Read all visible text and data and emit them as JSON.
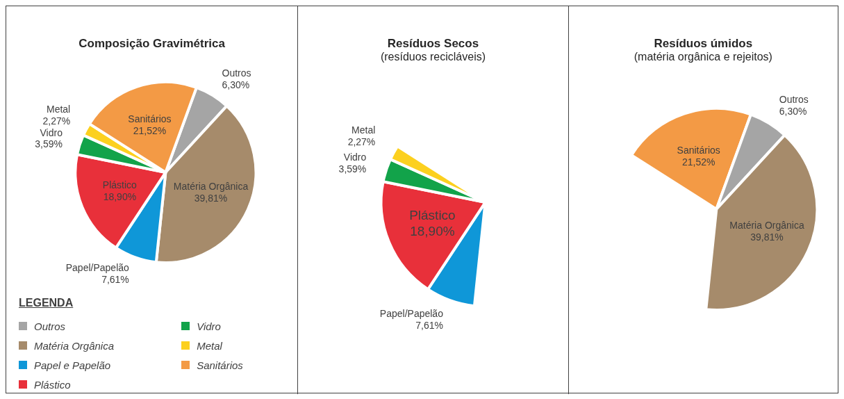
{
  "chart_data": [
    {
      "type": "pie",
      "title": "Composição Gravimétrica",
      "categories": [
        "Outros",
        "Matéria Orgânica",
        "Papel e Papelão",
        "Plástico",
        "Vidro",
        "Metal",
        "Sanitários"
      ],
      "values": [
        6.3,
        39.81,
        7.61,
        18.9,
        3.59,
        2.27,
        21.52
      ],
      "colors": [
        "#a5a5a5",
        "#a68b6b",
        "#0f97d8",
        "#e8303a",
        "#12a34a",
        "#fcd01f",
        "#f39a45"
      ],
      "value_labels": [
        "Outros\n6,30%",
        "Matéria Orgânica\n39,81%",
        "Papel/Papelão\n7,61%",
        "Plástico\n18,90%",
        "Vidro\n3,59%",
        "Metal\n2,27%",
        "Sanitários\n21,52%"
      ],
      "legend": "bottom left",
      "legend_title": "LEGENDA"
    },
    {
      "type": "pie",
      "title": "Resíduos Secos",
      "subtitle": "(resíduos recicláveis)",
      "categories": [
        "Papel/Papelão",
        "Plástico",
        "Vidro",
        "Metal"
      ],
      "values": [
        7.61,
        18.9,
        3.59,
        2.27
      ],
      "colors": [
        "#0f97d8",
        "#e8303a",
        "#12a34a",
        "#fcd01f"
      ],
      "value_labels": [
        "7,61%",
        "18,90%",
        "3,59%",
        "2,27%"
      ]
    },
    {
      "type": "pie",
      "title": "Resíduos úmidos",
      "subtitle": "(matéria orgânica e rejeitos)",
      "categories": [
        "Sanitários",
        "Outros",
        "Matéria Orgânica"
      ],
      "values": [
        21.52,
        6.3,
        39.81
      ],
      "colors": [
        "#f39a45",
        "#a5a5a5",
        "#a68b6b"
      ],
      "value_labels": [
        "21,52%",
        "6,30%",
        "39,81%"
      ]
    }
  ]
}
